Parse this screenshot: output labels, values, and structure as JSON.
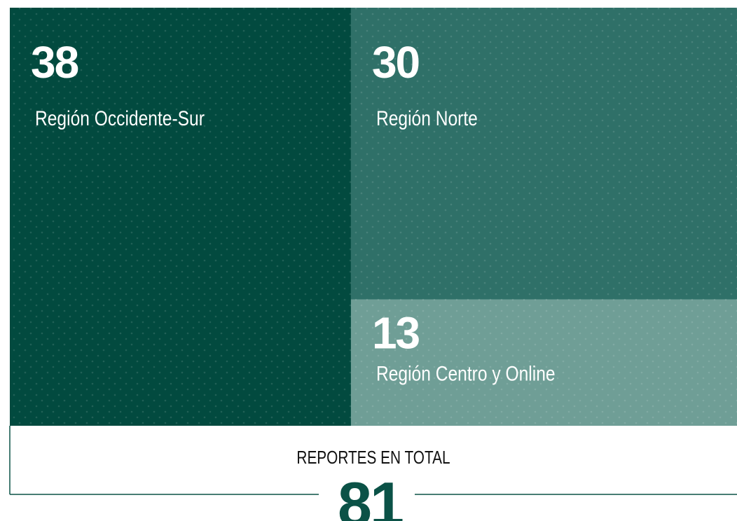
{
  "chart_data": {
    "type": "treemap",
    "categories": [
      "Región Occidente-Sur",
      "Región Norte",
      "Región Centro y Online"
    ],
    "values": [
      38,
      30,
      13
    ],
    "colors": [
      "#024a3f",
      "#2f7068",
      "#6f9e96"
    ],
    "total_label": "REPORTES EN TOTAL",
    "total": 81
  }
}
